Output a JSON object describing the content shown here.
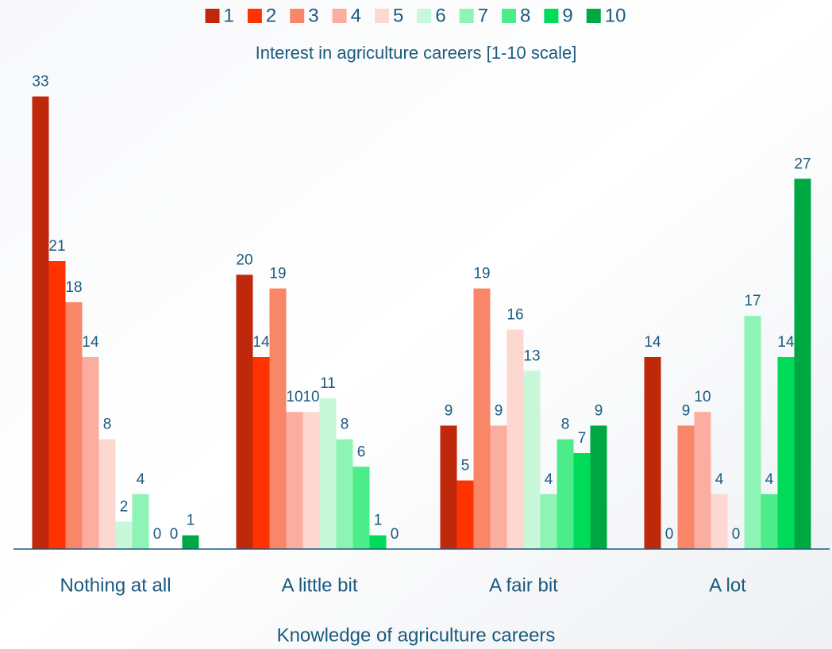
{
  "chart_data": {
    "type": "bar",
    "legend_title": "Interest in agriculture careers [1-10 scale]",
    "x_label": "Knowledge of agriculture careers",
    "categories": [
      "Nothing at all",
      "A little bit",
      "A fair bit",
      "A lot"
    ],
    "series": [
      {
        "name": "1",
        "color": "#c0280c",
        "values": [
          33,
          20,
          9,
          14
        ]
      },
      {
        "name": "2",
        "color": "#ff3300",
        "values": [
          21,
          14,
          5,
          0
        ]
      },
      {
        "name": "3",
        "color": "#f98668",
        "values": [
          18,
          19,
          19,
          9
        ]
      },
      {
        "name": "4",
        "color": "#fbaea0",
        "values": [
          14,
          10,
          9,
          10
        ]
      },
      {
        "name": "5",
        "color": "#fdd8d0",
        "values": [
          8,
          10,
          16,
          4
        ]
      },
      {
        "name": "6",
        "color": "#c8f7d9",
        "values": [
          2,
          11,
          13,
          0
        ]
      },
      {
        "name": "7",
        "color": "#8ef4b5",
        "values": [
          4,
          8,
          4,
          17
        ]
      },
      {
        "name": "8",
        "color": "#4dec8a",
        "values": [
          0,
          6,
          8,
          4
        ]
      },
      {
        "name": "9",
        "color": "#00dc5a",
        "values": [
          0,
          1,
          7,
          14
        ]
      },
      {
        "name": "10",
        "color": "#00a844",
        "values": [
          1,
          0,
          9,
          27
        ]
      }
    ],
    "ylim": [
      0,
      35
    ],
    "legend": "top"
  }
}
